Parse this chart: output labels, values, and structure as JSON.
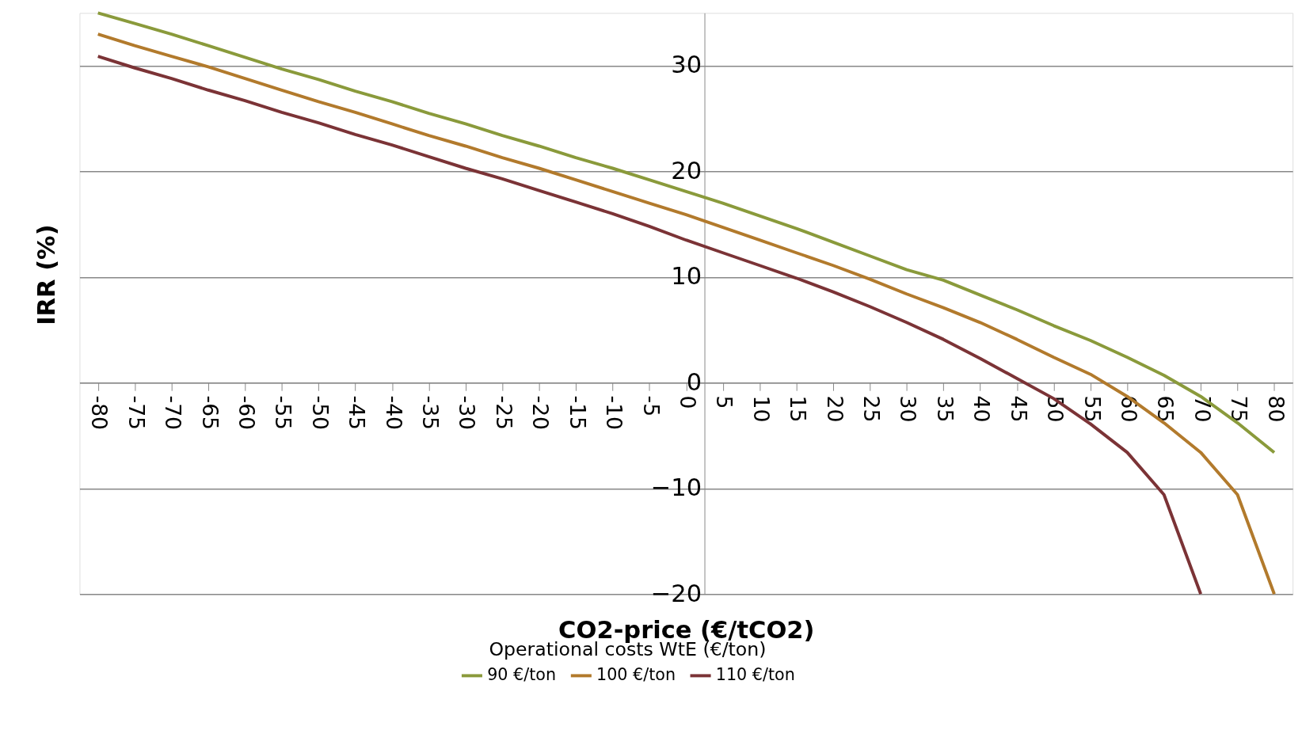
{
  "chart_data": {
    "type": "line",
    "xlabel": "CO2-price (€/tCO2)",
    "ylabel": "IRR (%)",
    "legend_title": "Operational  costs WtE (€/ton)",
    "categories": [
      "-80",
      "-75",
      "-70",
      "-65",
      "-60",
      "-55",
      "-50",
      "-45",
      "-40",
      "-35",
      "-30",
      "-25",
      "-20",
      "-15",
      "-10",
      "-5",
      "0",
      "5",
      "10",
      "15",
      "20",
      "25",
      "30",
      "35",
      "40",
      "45",
      "50",
      "55",
      "60",
      "65",
      "70",
      "75",
      "80"
    ],
    "series": [
      {
        "name": "90 €/ton",
        "color": "#8a9a3b",
        "values": [
          35.0,
          34.0,
          33.0,
          31.9,
          30.8,
          29.7,
          28.7,
          27.6,
          26.6,
          25.5,
          24.5,
          23.4,
          22.4,
          21.3,
          20.3,
          19.2,
          18.1,
          17.0,
          15.8,
          14.6,
          13.3,
          12.0,
          10.7,
          9.7,
          8.3,
          6.9,
          5.4,
          4.0,
          2.4,
          0.7,
          -1.3,
          -3.8,
          -6.6
        ]
      },
      {
        "name": "100 €/ton",
        "color": "#b27a2c",
        "values": [
          33.0,
          31.9,
          30.9,
          29.9,
          28.8,
          27.7,
          26.6,
          25.6,
          24.5,
          23.4,
          22.4,
          21.3,
          20.3,
          19.2,
          18.1,
          17.0,
          15.9,
          14.7,
          13.5,
          12.3,
          11.1,
          9.8,
          8.4,
          7.1,
          5.7,
          4.1,
          2.4,
          0.8,
          -1.3,
          -3.8,
          -6.6,
          -10.6,
          -20.0
        ]
      },
      {
        "name": "110 €/ton",
        "color": "#7b3336",
        "values": [
          30.9,
          29.8,
          28.8,
          27.7,
          26.7,
          25.6,
          24.6,
          23.5,
          22.5,
          21.4,
          20.3,
          19.3,
          18.2,
          17.1,
          16.0,
          14.8,
          13.5,
          12.3,
          11.1,
          9.9,
          8.6,
          7.2,
          5.7,
          4.1,
          2.3,
          0.4,
          -1.5,
          -3.9,
          -6.6,
          -10.6,
          -20.0,
          null,
          null
        ]
      }
    ],
    "ylim": [
      -20,
      35
    ],
    "yticks": [
      -20,
      -10,
      0,
      10,
      20,
      30
    ],
    "grid": "y",
    "legend": "bottom",
    "marker": "none",
    "line_style": "solid"
  }
}
